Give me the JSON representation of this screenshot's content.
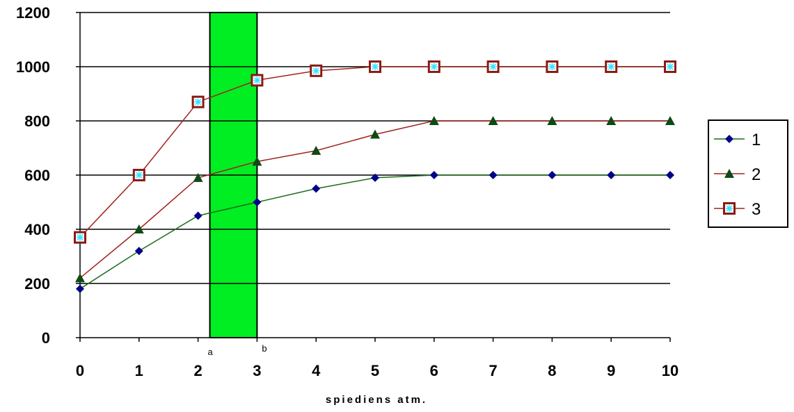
{
  "chart_data": {
    "type": "line",
    "title": "",
    "xlabel": "spiediens atm.",
    "ylabel": "",
    "xlim": [
      0,
      10
    ],
    "ylim": [
      0,
      1200
    ],
    "x": [
      0,
      1,
      2,
      3,
      4,
      5,
      6,
      7,
      8,
      9,
      10
    ],
    "x_ticks": [
      "0",
      "1",
      "2",
      "3",
      "4",
      "5",
      "6",
      "7",
      "8",
      "9",
      "10"
    ],
    "y_ticks": [
      "0",
      "200",
      "400",
      "600",
      "800",
      "1000",
      "1200"
    ],
    "gridlines": "horizontal",
    "legend_position": "right",
    "series": [
      {
        "name": "1",
        "marker": "diamond",
        "line_color": "#1a6b1a",
        "marker_color": "#00008b",
        "values": [
          180,
          320,
          450,
          500,
          550,
          590,
          600,
          600,
          600,
          600,
          600
        ]
      },
      {
        "name": "2",
        "marker": "triangle",
        "line_color": "#a0221e",
        "marker_color": "#0d4a14",
        "values": [
          220,
          400,
          590,
          650,
          690,
          750,
          800,
          800,
          800,
          800,
          800
        ]
      },
      {
        "name": "3",
        "marker": "square-star",
        "line_color": "#a0221e",
        "marker_color": "#8b1a14",
        "star_color": "#33e0ff",
        "values": [
          370,
          600,
          870,
          950,
          985,
          1000,
          1000,
          1000,
          1000,
          1000,
          1000
        ]
      }
    ],
    "band": {
      "x_start": 2.2,
      "x_end": 3,
      "color": "#00ee22",
      "start_label": "a",
      "end_label": "b"
    }
  }
}
